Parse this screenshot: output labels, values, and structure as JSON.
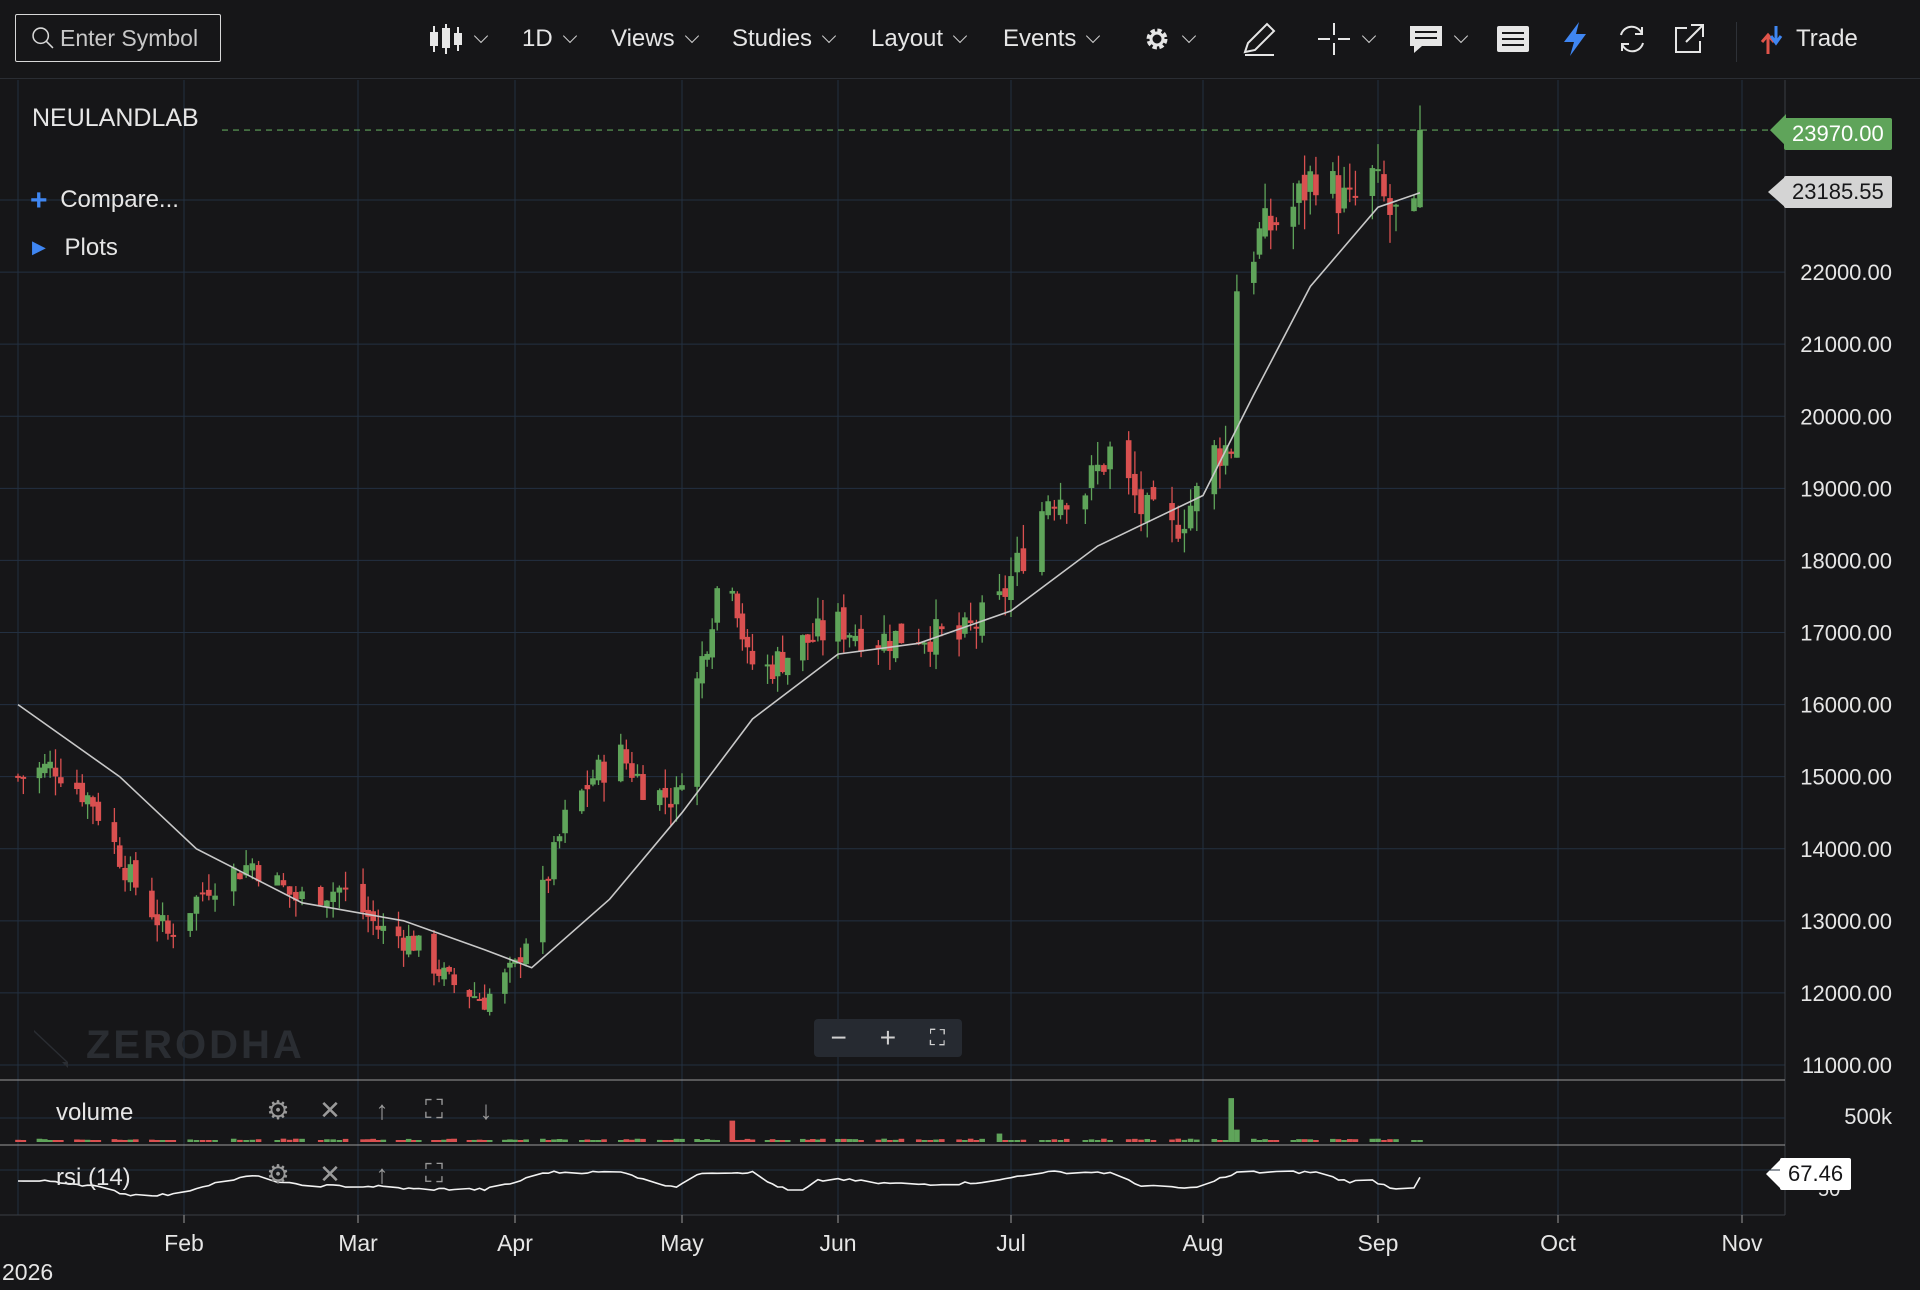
{
  "toolbar": {
    "search_placeholder": "Enter Symbol",
    "interval": "1D",
    "views": "Views",
    "studies": "Studies",
    "layout": "Layout",
    "events": "Events",
    "trade": "Trade",
    "icons": [
      "candlestick-icon",
      "gear-icon",
      "pencil-icon",
      "crosshair-icon",
      "comment-icon",
      "list-icon",
      "flash-icon",
      "refresh-icon",
      "external-link-icon",
      "trade-arrows-icon"
    ]
  },
  "legend": {
    "symbol": "NEULANDLAB",
    "compare": "Compare...",
    "plots": "Plots"
  },
  "watermark": "ZERODHA",
  "zoom": {
    "minus": "−",
    "plus": "+",
    "fit": "⛶"
  },
  "colors": {
    "up": "#5fa45a",
    "down": "#d95050",
    "bg": "#161618",
    "grid": "#233041",
    "ma": "#c8c8c8",
    "last_pill": "#5fa45a"
  },
  "chart_data": {
    "type": "candlestick",
    "symbol": "NEULANDLAB",
    "interval": "1D",
    "year_label": "2026",
    "x_labels": [
      "Feb",
      "Mar",
      "Apr",
      "May",
      "Jun",
      "Jul",
      "Aug",
      "Sep",
      "Oct",
      "Nov"
    ],
    "y_ticks": [
      11000,
      12000,
      13000,
      14000,
      15000,
      16000,
      17000,
      18000,
      19000,
      20000,
      21000,
      22000,
      23000
    ],
    "ylim": [
      10900,
      24300
    ],
    "last_price": 23970.0,
    "last_price_label": "23970.00",
    "ma_price_label": "23185.55",
    "close_waypoints": [
      {
        "date": "2026-01-01",
        "close": 15000
      },
      {
        "date": "2026-01-08",
        "close": 15150
      },
      {
        "date": "2026-01-15",
        "close": 14650
      },
      {
        "date": "2026-01-22",
        "close": 13600
      },
      {
        "date": "2026-01-29",
        "close": 12800
      },
      {
        "date": "2026-02-05",
        "close": 13500
      },
      {
        "date": "2026-02-12",
        "close": 13800
      },
      {
        "date": "2026-02-19",
        "close": 13300
      },
      {
        "date": "2026-02-26",
        "close": 13450
      },
      {
        "date": "2026-03-05",
        "close": 12900
      },
      {
        "date": "2026-03-12",
        "close": 12700
      },
      {
        "date": "2026-03-19",
        "close": 12150
      },
      {
        "date": "2026-03-26",
        "close": 11900
      },
      {
        "date": "2026-04-01",
        "close": 12350
      },
      {
        "date": "2026-04-06",
        "close": 13400
      },
      {
        "date": "2026-04-10",
        "close": 14400
      },
      {
        "date": "2026-04-15",
        "close": 15000
      },
      {
        "date": "2026-04-20",
        "close": 15300
      },
      {
        "date": "2026-04-25",
        "close": 14800
      },
      {
        "date": "2026-04-30",
        "close": 14700
      },
      {
        "date": "2026-05-04",
        "close": 16300
      },
      {
        "date": "2026-05-08",
        "close": 17600
      },
      {
        "date": "2026-05-11",
        "close": 17800
      },
      {
        "date": "2026-05-14",
        "close": 16600
      },
      {
        "date": "2026-05-18",
        "close": 16500
      },
      {
        "date": "2026-05-25",
        "close": 16850
      },
      {
        "date": "2026-06-01",
        "close": 17100
      },
      {
        "date": "2026-06-08",
        "close": 16900
      },
      {
        "date": "2026-06-15",
        "close": 17000
      },
      {
        "date": "2026-06-22",
        "close": 16900
      },
      {
        "date": "2026-06-29",
        "close": 17400
      },
      {
        "date": "2026-07-03",
        "close": 18100
      },
      {
        "date": "2026-07-07",
        "close": 18900
      },
      {
        "date": "2026-07-13",
        "close": 19000
      },
      {
        "date": "2026-07-17",
        "close": 19500
      },
      {
        "date": "2026-07-22",
        "close": 18700
      },
      {
        "date": "2026-07-27",
        "close": 18400
      },
      {
        "date": "2026-07-31",
        "close": 18900
      },
      {
        "date": "2026-08-03",
        "close": 19500
      },
      {
        "date": "2026-08-06",
        "close": 19600
      },
      {
        "date": "2026-08-07",
        "close": 21800
      },
      {
        "date": "2026-08-11",
        "close": 22500
      },
      {
        "date": "2026-08-17",
        "close": 22900
      },
      {
        "date": "2026-08-21",
        "close": 23400
      },
      {
        "date": "2026-08-27",
        "close": 22900
      },
      {
        "date": "2026-08-31",
        "close": 23300
      },
      {
        "date": "2026-09-03",
        "close": 22800
      },
      {
        "date": "2026-09-07",
        "close": 22700
      },
      {
        "date": "2026-09-08",
        "close": 23970
      }
    ],
    "moving_average": [
      {
        "date": "2026-01-01",
        "value": 16000
      },
      {
        "date": "2026-01-20",
        "value": 15000
      },
      {
        "date": "2026-02-03",
        "value": 14000
      },
      {
        "date": "2026-02-20",
        "value": 13250
      },
      {
        "date": "2026-03-10",
        "value": 13000
      },
      {
        "date": "2026-03-26",
        "value": 12600
      },
      {
        "date": "2026-04-04",
        "value": 12350
      },
      {
        "date": "2026-04-18",
        "value": 13300
      },
      {
        "date": "2026-05-01",
        "value": 14500
      },
      {
        "date": "2026-05-15",
        "value": 15800
      },
      {
        "date": "2026-06-01",
        "value": 16700
      },
      {
        "date": "2026-06-15",
        "value": 16850
      },
      {
        "date": "2026-07-01",
        "value": 17300
      },
      {
        "date": "2026-07-15",
        "value": 18200
      },
      {
        "date": "2026-08-01",
        "value": 18900
      },
      {
        "date": "2026-08-10",
        "value": 20300
      },
      {
        "date": "2026-08-20",
        "value": 21800
      },
      {
        "date": "2026-09-01",
        "value": 22900
      },
      {
        "date": "2026-09-08",
        "value": 23100
      }
    ],
    "volume_pane": {
      "label": "volume",
      "tick": "500k",
      "spikes": [
        {
          "date": "2026-02-22",
          "value": 200000,
          "dir": "up"
        },
        {
          "date": "2026-05-11",
          "value": 380000,
          "dir": "down"
        },
        {
          "date": "2026-05-02",
          "value": 130000,
          "dir": "up"
        },
        {
          "date": "2026-06-29",
          "value": 150000,
          "dir": "up"
        },
        {
          "date": "2026-08-06",
          "value": 780000,
          "dir": "up"
        },
        {
          "date": "2026-08-07",
          "value": 220000,
          "dir": "up"
        }
      ],
      "baseline_value": 40000
    },
    "rsi_pane": {
      "label": "rsi (14)",
      "tick": "50",
      "last": 67.46,
      "last_label": "67.46"
    }
  }
}
